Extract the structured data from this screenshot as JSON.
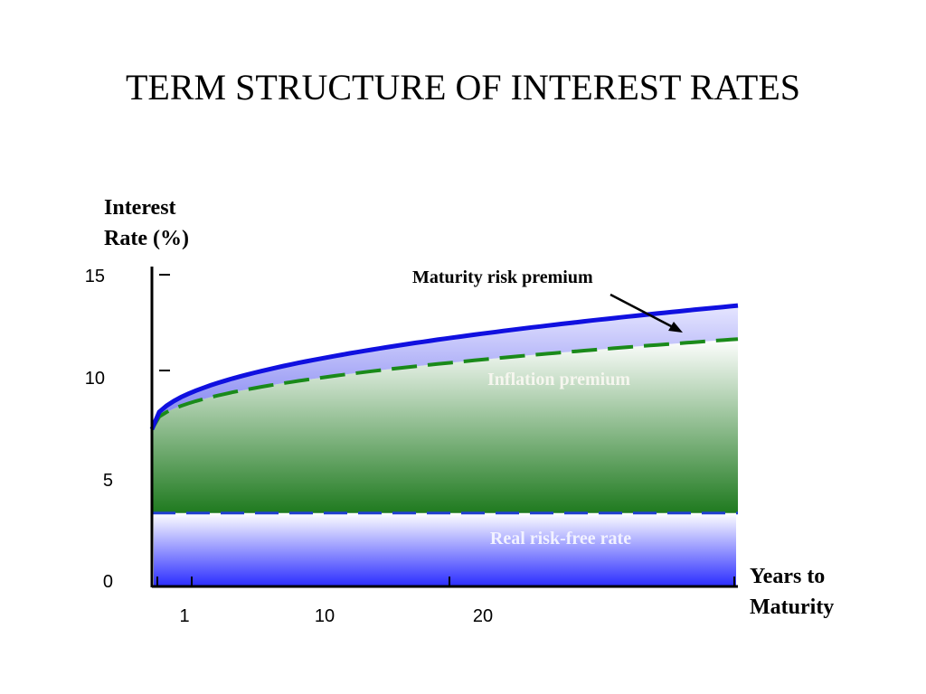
{
  "slide": {
    "title": "TERM STRUCTURE OF INTEREST RATES"
  },
  "chart_data": {
    "type": "area",
    "title": "TERM STRUCTURE OF INTEREST RATES",
    "ylabel_line1": "Interest",
    "ylabel_line2": "Rate (%)",
    "xlabel_line1": "Years to",
    "xlabel_line2": "Maturity",
    "ylim": [
      0,
      15
    ],
    "y_ticks": [
      0,
      5,
      10,
      15
    ],
    "x_tick_labels": [
      "1",
      "10",
      "20"
    ],
    "series": [
      {
        "name": "Real risk-free rate",
        "kind": "flat",
        "value": 3.5,
        "style": "dashed",
        "color": "#1f3fd0"
      },
      {
        "name": "Inflation premium",
        "kind": "curve",
        "start": 7.5,
        "end": 11.8,
        "style": "dashed",
        "color": "#1a8a1a"
      },
      {
        "name": "Maturity risk premium",
        "kind": "curve",
        "start": 7.5,
        "end": 13.4,
        "style": "solid",
        "color": "#1010e0"
      }
    ],
    "annotations": {
      "maturity_risk_premium": "Maturity risk premium",
      "inflation_premium": "Inflation premium",
      "real_risk_free_rate": "Real risk-free rate"
    },
    "colors": {
      "blue_fill_bottom": "#2a2cff",
      "green_fill_bottom": "#1f7a1f",
      "premium_fill": "#b8b8f4",
      "axis": "#000000"
    }
  }
}
